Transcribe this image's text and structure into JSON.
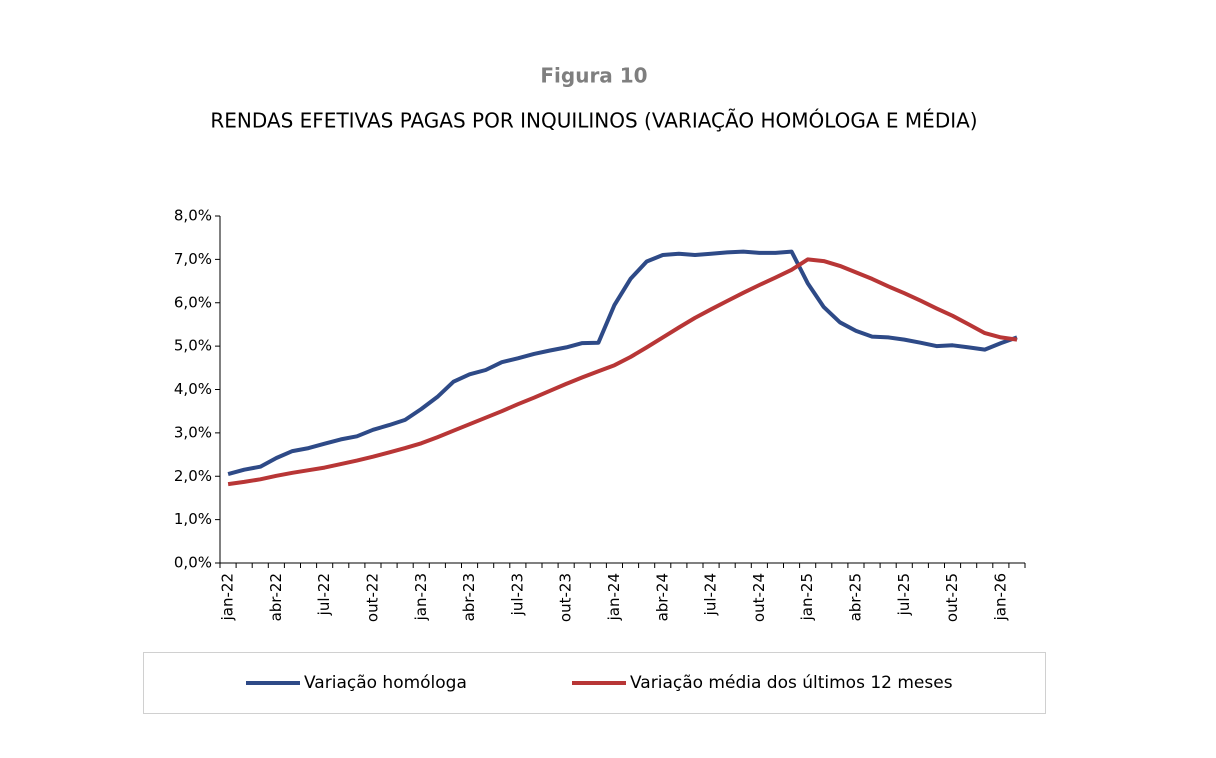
{
  "chart_data": {
    "type": "line",
    "title": "Figura 10",
    "subtitle": "RENDAS EFETIVAS PAGAS POR INQUILINOS (VARIAÇÃO HOMÓLOGA E MÉDIA)",
    "categories": [
      "jan-22",
      null,
      null,
      "abr-22",
      null,
      null,
      "jul-22",
      null,
      null,
      "out-22",
      null,
      null,
      "jan-23",
      null,
      null,
      "abr-23",
      null,
      null,
      "jul-23",
      null,
      null,
      "out-23",
      null,
      null,
      "jan-24",
      null,
      null,
      "abr-24",
      null,
      null,
      "jul-24",
      null,
      null,
      "out-24",
      null,
      null,
      "jan-25",
      null,
      null,
      "abr-25",
      null,
      null,
      "jul-25",
      null,
      null,
      "out-25",
      null,
      null,
      "jan-26",
      null
    ],
    "series": [
      {
        "name": "Variação homóloga",
        "color": "#2e4a87",
        "values": [
          2.05,
          2.15,
          2.22,
          2.42,
          2.58,
          2.65,
          2.75,
          2.85,
          2.92,
          3.07,
          3.18,
          3.3,
          3.55,
          3.83,
          4.18,
          4.35,
          4.45,
          4.63,
          4.72,
          4.82,
          4.9,
          4.97,
          5.07,
          5.08,
          5.95,
          6.55,
          6.95,
          7.1,
          7.13,
          7.1,
          7.13,
          7.16,
          7.18,
          7.15,
          7.15,
          7.18,
          6.45,
          5.9,
          5.55,
          5.35,
          5.22,
          5.2,
          5.15,
          5.08,
          5.0,
          5.02,
          4.97,
          4.92,
          5.07,
          5.2
        ]
      },
      {
        "name": "Variação média dos últimos 12 meses",
        "color": "#b83636",
        "values": [
          1.82,
          1.87,
          1.93,
          2.01,
          2.08,
          2.14,
          2.2,
          2.28,
          2.36,
          2.45,
          2.55,
          2.65,
          2.76,
          2.9,
          3.05,
          3.2,
          3.35,
          3.5,
          3.66,
          3.81,
          3.97,
          4.13,
          4.28,
          4.42,
          4.56,
          4.75,
          4.97,
          5.2,
          5.43,
          5.65,
          5.85,
          6.04,
          6.23,
          6.41,
          6.58,
          6.76,
          7.0,
          6.96,
          6.85,
          6.7,
          6.55,
          6.38,
          6.22,
          6.05,
          5.87,
          5.7,
          5.5,
          5.3,
          5.2,
          5.15
        ]
      }
    ],
    "ylim": [
      0,
      8
    ],
    "yticks": [
      {
        "value": 0,
        "label": "0,0%"
      },
      {
        "value": 1,
        "label": "1,0%"
      },
      {
        "value": 2,
        "label": "2,0%"
      },
      {
        "value": 3,
        "label": "3,0%"
      },
      {
        "value": 4,
        "label": "4,0%"
      },
      {
        "value": 5,
        "label": "5,0%"
      },
      {
        "value": 6,
        "label": "6,0%"
      },
      {
        "value": 7,
        "label": "7,0%"
      },
      {
        "value": 8,
        "label": "8,0%"
      }
    ],
    "grid": false,
    "legend": "bottom"
  }
}
